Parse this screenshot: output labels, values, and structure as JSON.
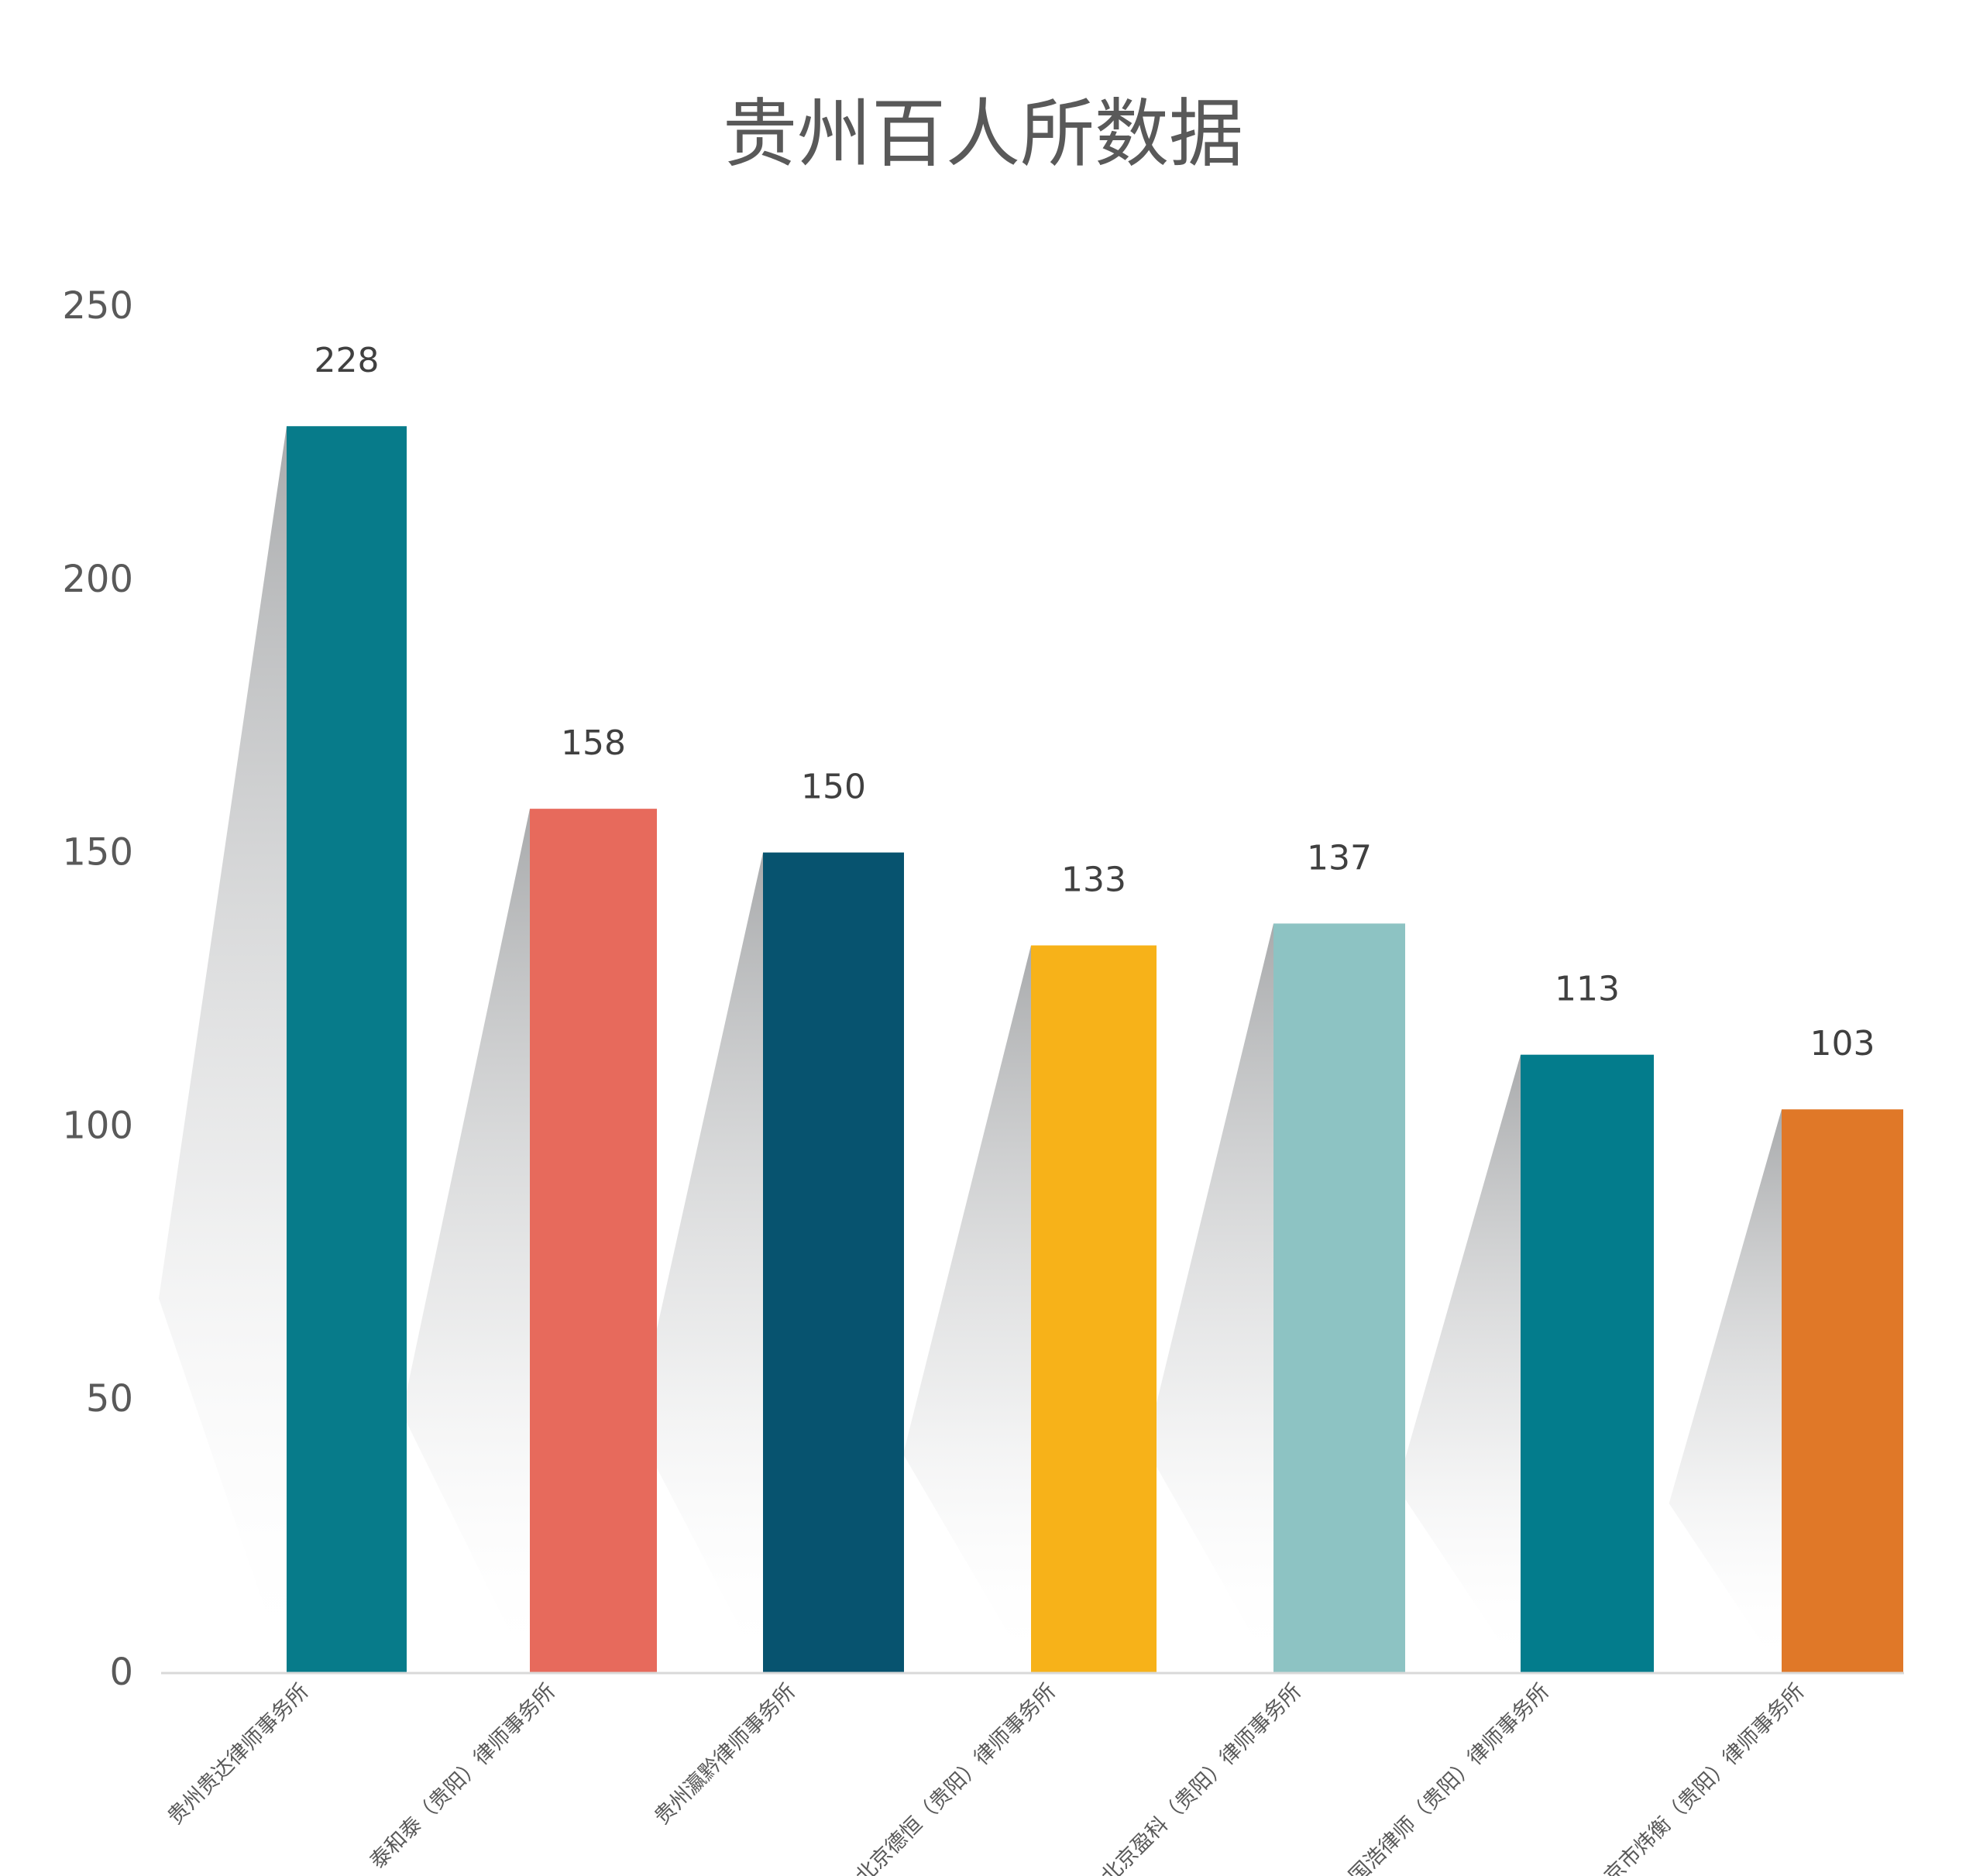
{
  "chart_data": {
    "type": "bar",
    "title": "贵州百人所数据",
    "xlabel": "",
    "ylabel": "",
    "ylim": [
      0,
      250
    ],
    "yticks": [
      0,
      50,
      100,
      150,
      200,
      250
    ],
    "grid": false,
    "legend": "none",
    "categories": [
      "贵州贵达律师事务所",
      "泰和泰（贵阳）律师事务所",
      "贵州瀛黔律师事务所",
      "北京德恒（贵阳）律师事务所",
      "北京盈科（贵阳）律师事务所",
      "国浩律师（贵阳）律师事务所",
      "北京市炜衡（贵阳）律师事务所"
    ],
    "values": [
      228,
      158,
      150,
      133,
      137,
      113,
      103
    ],
    "colors": [
      "#077B8A",
      "#E76A5C",
      "#07536F",
      "#F7B219",
      "#8DC3C3",
      "#037C8C",
      "#E07828"
    ]
  }
}
